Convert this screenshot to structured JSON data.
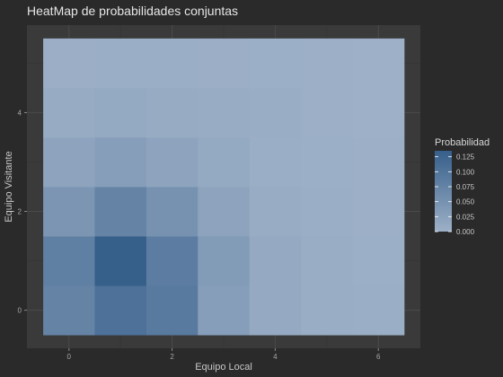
{
  "chart_data": {
    "type": "heatmap",
    "title": "HeatMap de probabilidades conjuntas",
    "xlabel": "Equipo Local",
    "ylabel": "Equipo Visitante",
    "x_categories": [
      0,
      1,
      2,
      3,
      4,
      5,
      6
    ],
    "y_categories": [
      0,
      1,
      2,
      3,
      4,
      5
    ],
    "x_ticks": [
      0,
      2,
      4,
      6
    ],
    "y_ticks": [
      0,
      2,
      4
    ],
    "xlim": [
      -0.5,
      6.5
    ],
    "ylim": [
      -0.5,
      5.5
    ],
    "values": [
      [
        0.075,
        0.105,
        0.09,
        0.03,
        0.01,
        0.005,
        0.004
      ],
      [
        0.08,
        0.135,
        0.085,
        0.035,
        0.01,
        0.005,
        0.002
      ],
      [
        0.045,
        0.075,
        0.05,
        0.02,
        0.006,
        0.004,
        0.001
      ],
      [
        0.02,
        0.03,
        0.02,
        0.012,
        0.004,
        0.002,
        0.001
      ],
      [
        0.008,
        0.012,
        0.008,
        0.006,
        0.005,
        0.001,
        0.0
      ],
      [
        0.003,
        0.004,
        0.004,
        0.003,
        0.002,
        0.001,
        0.0
      ]
    ],
    "legend": {
      "title": "Probabilidad",
      "position": "right",
      "ticks": [
        0.0,
        0.025,
        0.05,
        0.075,
        0.1,
        0.125
      ],
      "tick_labels": [
        "0.000",
        "0.025",
        "0.050",
        "0.075",
        "0.100",
        "0.125"
      ],
      "range": [
        0,
        0.135
      ]
    },
    "color_low": "#9db0c7",
    "color_high": "#365f8a",
    "panel_color": "#3a3a3a",
    "grid_color": "#4a4a4a"
  }
}
